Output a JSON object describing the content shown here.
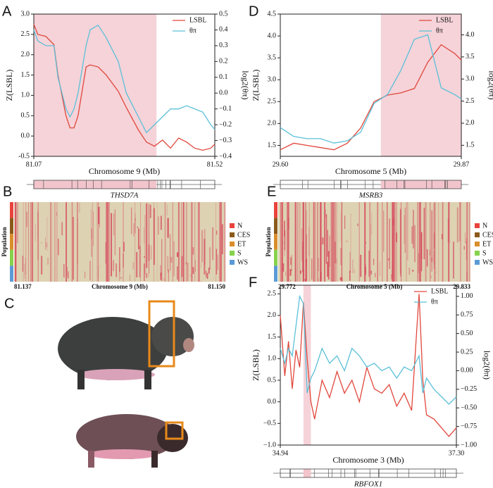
{
  "chart_data": [
    {
      "type": "line",
      "panel": "A",
      "x_label": "Chromosome 9 (Mb)",
      "y_label": "Z(LSBL)",
      "y2_label": "log2(θπ)",
      "gene": "THSD7A",
      "xlim": [
        81.07,
        81.52
      ],
      "xticks": [
        81.07,
        81.52
      ],
      "ylim": [
        -0.5,
        3.0
      ],
      "yticks": [
        {
          "value": -0.5,
          "label": "-0.5"
        },
        {
          "value": 0,
          "label": "0.0"
        },
        {
          "value": 0.5,
          "label": "0.5"
        },
        {
          "value": 1,
          "label": "1.0"
        },
        {
          "value": 1.5,
          "label": "1.5"
        },
        {
          "value": 2,
          "label": "2.0"
        },
        {
          "value": 2.5,
          "label": "2.5"
        },
        {
          "value": 3,
          "label": "3.0"
        }
      ],
      "y2lim": [
        -0.4,
        0.5
      ],
      "y2ticks": [
        {
          "value": -0.4,
          "label": "−0.4"
        },
        {
          "value": -0.3,
          "label": "−0.3"
        },
        {
          "value": -0.2,
          "label": "−0.2"
        },
        {
          "value": -0.1,
          "label": "−0.1"
        },
        {
          "value": 0,
          "label": "0.0"
        },
        {
          "value": 0.1,
          "label": "0.1"
        },
        {
          "value": 0.2,
          "label": "0.2"
        },
        {
          "value": 0.3,
          "label": "0.3"
        },
        {
          "value": 0.4,
          "label": "0.4"
        },
        {
          "value": 0.5,
          "label": "0.5"
        }
      ],
      "highlight": [
        81.07,
        81.375
      ],
      "x": [
        81.07,
        81.08,
        81.1,
        81.12,
        81.13,
        81.15,
        81.16,
        81.17,
        81.18,
        81.2,
        81.21,
        81.23,
        81.25,
        81.28,
        81.3,
        81.33,
        81.35,
        81.37,
        81.39,
        81.41,
        81.43,
        81.45,
        81.47,
        81.49,
        81.51,
        81.52
      ],
      "series": [
        {
          "name": "LSBL",
          "color": "#e0473c",
          "values": [
            2.75,
            2.5,
            2.45,
            2.25,
            1.5,
            0.5,
            0.2,
            0.2,
            0.5,
            1.7,
            1.75,
            1.7,
            1.5,
            1.1,
            0.7,
            0.15,
            -0.15,
            -0.25,
            -0.1,
            -0.3,
            -0.05,
            -0.15,
            -0.3,
            -0.35,
            -0.3,
            -0.2
          ]
        },
        {
          "name": "θπ",
          "color": "#5bc0d8",
          "axis": "y2",
          "values": [
            0.4,
            0.33,
            0.3,
            0.3,
            0.1,
            -0.1,
            -0.15,
            -0.1,
            0.0,
            0.3,
            0.4,
            0.43,
            0.35,
            0.2,
            0.0,
            -0.15,
            -0.25,
            -0.2,
            -0.15,
            -0.1,
            -0.1,
            -0.08,
            -0.1,
            -0.12,
            -0.2,
            -0.23
          ]
        }
      ]
    },
    {
      "type": "line",
      "panel": "D",
      "x_label": "Chromosome 5 (Mb)",
      "y_label": "Z(LSBL)",
      "y2_label": "log2(θπ)",
      "gene": "MSRB3",
      "xlim": [
        29.6,
        29.87
      ],
      "xticks": [
        {
          "value": 29.6,
          "label": "29.60"
        },
        29.87
      ],
      "ylim": [
        1.25,
        4.5
      ],
      "yticks": [
        1.5,
        {
          "value": 2,
          "label": "2.0"
        },
        2.5,
        {
          "value": 3,
          "label": "3.0"
        },
        3.5,
        {
          "value": 4,
          "label": "4.0"
        },
        4.5
      ],
      "y2lim": [
        1.25,
        4.47
      ],
      "y2ticks": [
        1.5,
        {
          "value": 2,
          "label": "2.0"
        },
        2.5,
        {
          "value": 3,
          "label": "3.0"
        },
        3.5,
        {
          "value": 4,
          "label": "4.0"
        }
      ],
      "highlight": [
        29.75,
        29.87
      ],
      "x": [
        29.6,
        29.62,
        29.64,
        29.66,
        29.68,
        29.7,
        29.72,
        29.74,
        29.76,
        29.78,
        29.8,
        29.82,
        29.84,
        29.86,
        29.87
      ],
      "series": [
        {
          "name": "LSBL",
          "color": "#e0473c",
          "values": [
            1.4,
            1.55,
            1.5,
            1.45,
            1.4,
            1.55,
            1.9,
            2.5,
            2.65,
            2.7,
            2.8,
            3.4,
            3.8,
            3.6,
            3.45
          ]
        },
        {
          "name": "θπ",
          "color": "#5bc0d8",
          "axis": "y2",
          "values": [
            1.9,
            1.7,
            1.65,
            1.65,
            1.55,
            1.6,
            1.8,
            2.45,
            2.65,
            3.2,
            3.9,
            4.0,
            2.8,
            2.65,
            2.55
          ]
        }
      ]
    },
    {
      "type": "line",
      "panel": "F",
      "x_label": "Chromosome 3 (Mb)",
      "y_label": "Z(LSBL)",
      "y2_label": "log2(θπ)",
      "gene": "RBFOX1",
      "xlim": [
        34.94,
        37.3
      ],
      "xticks": [
        34.94,
        {
          "value": 37.3,
          "label": "37.30"
        }
      ],
      "ylim": [
        -1.0,
        2.7
      ],
      "yticks": [
        {
          "value": -1,
          "label": "−1.0"
        },
        {
          "value": -0.5,
          "label": "−0.5"
        },
        {
          "value": 0,
          "label": "0.0"
        },
        {
          "value": 0.5,
          "label": "0.5"
        },
        {
          "value": 1,
          "label": "1.0"
        },
        {
          "value": 1.5,
          "label": "1.5"
        },
        {
          "value": 2,
          "label": "2.0"
        },
        {
          "value": 2.5,
          "label": "2.5"
        }
      ],
      "y2lim": [
        -1.0,
        1.15
      ],
      "y2ticks": [
        {
          "value": -1,
          "label": "−1.00"
        },
        {
          "value": -0.75,
          "label": "−0.75"
        },
        {
          "value": -0.5,
          "label": "−0.50"
        },
        {
          "value": -0.25,
          "label": "−0.25"
        },
        {
          "value": 0,
          "label": "0.00"
        },
        {
          "value": 0.25,
          "label": "0.25"
        },
        {
          "value": 0.5,
          "label": "0.50"
        },
        {
          "value": 0.75,
          "label": "0.75"
        },
        {
          "value": 1,
          "label": "1.00"
        }
      ],
      "highlight": [
        35.25,
        35.35
      ],
      "x": [
        34.94,
        35.0,
        35.05,
        35.1,
        35.15,
        35.2,
        35.25,
        35.3,
        35.35,
        35.4,
        35.5,
        35.6,
        35.7,
        35.8,
        35.9,
        36.0,
        36.1,
        36.2,
        36.3,
        36.4,
        36.5,
        36.6,
        36.7,
        36.8,
        36.85,
        36.9,
        37.0,
        37.1,
        37.2,
        37.3
      ],
      "series": [
        {
          "name": "LSBL",
          "color": "#e0473c",
          "values": [
            2.0,
            0.6,
            1.4,
            0.3,
            1.2,
            0.8,
            2.3,
            1.0,
            0.0,
            -0.4,
            0.5,
            0.1,
            0.7,
            0.2,
            0.5,
            0.0,
            0.8,
            0.3,
            0.2,
            0.4,
            -0.1,
            0.2,
            -0.2,
            2.5,
            0.5,
            -0.3,
            -0.4,
            -0.6,
            -0.8,
            -0.6
          ]
        },
        {
          "name": "θπ",
          "color": "#5bc0d8",
          "axis": "y2",
          "values": [
            0.3,
            0.1,
            0.3,
            0.2,
            0.6,
            1.0,
            0.9,
            -0.3,
            -0.1,
            0.0,
            0.3,
            0.1,
            0.2,
            0.0,
            0.3,
            0.2,
            0.05,
            0.1,
            0.0,
            0.05,
            -0.1,
            0.05,
            0.0,
            0.2,
            -0.3,
            -0.1,
            -0.25,
            -0.35,
            -0.45,
            -0.35
          ]
        }
      ]
    },
    {
      "type": "heatmap",
      "panel": "B",
      "x_label": "Chromosome 9 (Mb)",
      "y_label": "Population",
      "xlim": [
        81.137,
        81.15
      ],
      "xticks": [
        81.137,
        {
          "value": 81.15,
          "label": "81.150"
        }
      ],
      "populations": [
        {
          "name": "N",
          "color": "#e8433c"
        },
        {
          "name": "CES",
          "color": "#8b5a1b"
        },
        {
          "name": "ET",
          "color": "#d98e2b"
        },
        {
          "name": "S",
          "color": "#86d24c"
        },
        {
          "name": "WS",
          "color": "#5b9bd5"
        }
      ]
    },
    {
      "type": "heatmap",
      "panel": "E",
      "x_label": "Chromosome 5 (Mb)",
      "y_label": "Population",
      "xlim": [
        29.772,
        29.833
      ],
      "xticks": [
        29.772,
        29.833
      ],
      "populations": [
        {
          "name": "N",
          "color": "#e8433c"
        },
        {
          "name": "CES",
          "color": "#8b5a1b"
        },
        {
          "name": "ET",
          "color": "#d98e2b"
        },
        {
          "name": "S",
          "color": "#86d24c"
        },
        {
          "name": "WS",
          "color": "#5b9bd5"
        }
      ]
    }
  ],
  "photo_panel": {
    "panel": "C"
  }
}
